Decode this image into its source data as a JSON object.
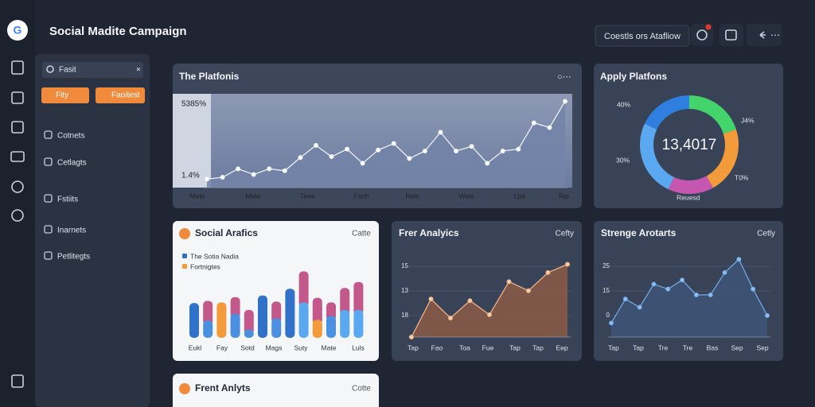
{
  "header": {
    "title": "Social Madite Campaign",
    "action": "Coestls ors Atafliow"
  },
  "sidebar": {
    "search": "Fasit",
    "buttons": [
      "Fity",
      "Faoitest"
    ],
    "menu": [
      "Cotnets",
      "Cetlagts",
      "Fstiits",
      "Inarnets",
      "Petlitegts"
    ]
  },
  "charts": [
    {
      "type": "area",
      "title": "The Platfonis",
      "annotations": [
        "5385%",
        "1.4%"
      ],
      "x_labels": [
        "Mete",
        "Mete",
        "Tiree",
        "Fach",
        "Reis",
        "Weis",
        "Lpd",
        "Tep"
      ],
      "values": [
        9,
        11,
        20,
        14,
        20,
        18,
        32,
        45,
        33,
        41,
        26,
        40,
        47,
        31,
        39,
        59,
        39,
        44,
        26,
        39,
        41,
        69,
        64,
        92
      ],
      "ylim": [
        0,
        100
      ],
      "color": "#eef1f7",
      "fill": "#7384a8"
    },
    {
      "type": "donut",
      "title": "Apply Platfons",
      "center": "13,4017",
      "labels": [
        "40%",
        "J4%",
        "30%",
        "T0%",
        "Reuesd"
      ],
      "values": [
        20,
        22,
        15,
        25,
        18
      ],
      "colors": [
        "#43d46b",
        "#f39a3b",
        "#c557b0",
        "#5aa9f0",
        "#2f7fe0"
      ]
    },
    {
      "type": "stacked-bar",
      "title": "Social Arafics",
      "action": "Catte",
      "legend": [
        {
          "name": "The Sotia Nadia",
          "color": "#2f72c8"
        },
        {
          "name": "Fortnigtes",
          "color": "#f39a3b"
        }
      ],
      "x_labels": [
        "Eukl",
        "Fay",
        "Sotd",
        "Mags",
        "Suty",
        "Mate",
        "Luls"
      ],
      "series": [
        {
          "values": [
            46,
            23,
            47,
            32,
            11,
            56,
            26,
            65,
            47,
            24,
            29,
            37,
            37
          ],
          "colors": [
            "#2f72c8",
            "#4b8fe0",
            "#f39a3b",
            "#4b8fe0",
            "#4b8fe0",
            "#2f72c8",
            "#4b8fe0",
            "#2f72c8",
            "#5aa9f0",
            "#f39a3b",
            "#4b8fe0",
            "#5aa9f0",
            "#5aa9f0"
          ]
        },
        {
          "values": [
            0,
            26,
            0,
            22,
            26,
            0,
            22,
            0,
            41,
            29,
            18,
            29,
            37
          ],
          "color": "#c2598a"
        }
      ],
      "ylim": [
        0,
        100
      ]
    },
    {
      "type": "area",
      "title": "Frer Analyics",
      "action": "Cefty",
      "y_labels": [
        "15",
        "13",
        "18"
      ],
      "x_labels": [
        "Tap",
        "Fao",
        "Toa",
        "Fue",
        "Tap",
        "Tap",
        "Eep"
      ],
      "values": [
        0,
        46,
        23,
        44,
        27,
        67,
        56,
        78,
        88
      ],
      "ylim": [
        0,
        100
      ],
      "color": "#f0b085",
      "fill": "#8b5a47"
    },
    {
      "type": "area",
      "title": "Strenge Arotarts",
      "action": "Cetly",
      "y_labels": [
        "25",
        "15",
        "0"
      ],
      "x_labels": [
        "Tap",
        "Tap",
        "Tre",
        "Tre",
        "Bas",
        "Sep",
        "Sep"
      ],
      "values": [
        17,
        46,
        36,
        64,
        58,
        69,
        51,
        51,
        78,
        94,
        58,
        26
      ],
      "ylim": [
        0,
        100
      ],
      "color": "#6fa6e0",
      "fill": "#3e5578"
    },
    {
      "title": "Frent Anlyts",
      "action": "Cotte"
    }
  ]
}
